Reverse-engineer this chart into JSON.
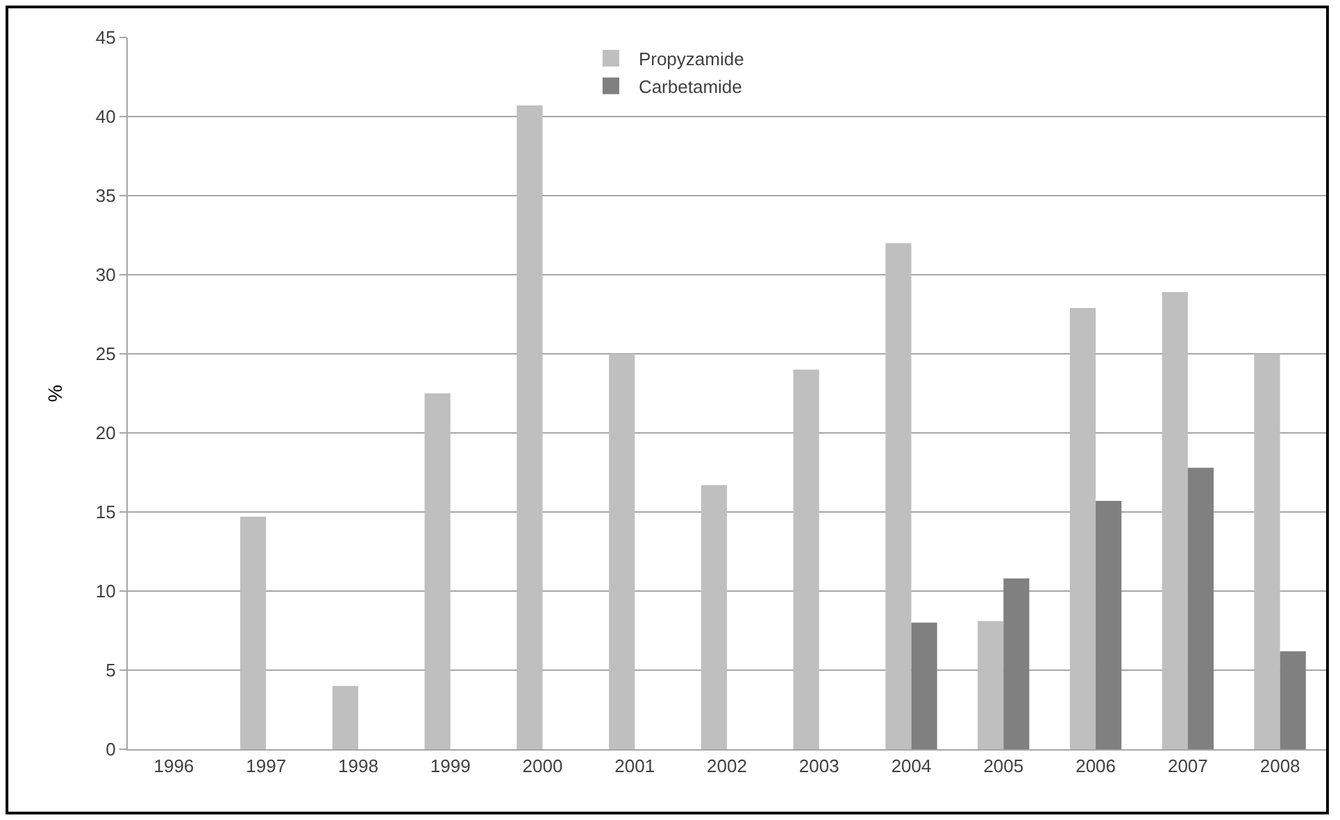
{
  "chart_data": {
    "type": "bar",
    "ylabel": "%",
    "categories": [
      "1996",
      "1997",
      "1998",
      "1999",
      "2000",
      "2001",
      "2002",
      "2003",
      "2004",
      "2005",
      "2006",
      "2007",
      "2008"
    ],
    "series": [
      {
        "name": "Propyzamide",
        "color": "#bfbfbf",
        "values": [
          null,
          14.7,
          4.0,
          22.5,
          40.7,
          25.0,
          16.7,
          24.0,
          32.0,
          8.1,
          27.9,
          28.9,
          25.0
        ]
      },
      {
        "name": "Carbetamide",
        "color": "#808080",
        "values": [
          null,
          null,
          null,
          null,
          null,
          null,
          null,
          null,
          8.0,
          10.8,
          15.7,
          17.8,
          6.2
        ]
      }
    ],
    "ylim": [
      0,
      45
    ],
    "yticks": [
      0,
      5,
      10,
      15,
      20,
      25,
      30,
      35,
      40,
      45
    ],
    "grid": "y",
    "legend": "top"
  }
}
